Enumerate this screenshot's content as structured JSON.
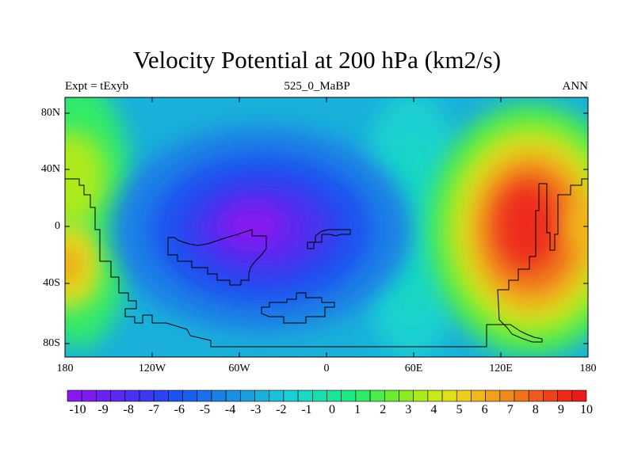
{
  "title": "Velocity Potential at 200 hPa (km2/s)",
  "subtitle_left": "Expt = tExyb",
  "subtitle_center": "525_0_MaBP",
  "subtitle_right": "ANN",
  "lat_labels": [
    "80N",
    "40N",
    "0",
    "40S",
    "80S"
  ],
  "lon_labels": [
    "180",
    "120W",
    "60W",
    "0",
    "60E",
    "120E",
    "180"
  ],
  "colorbar": {
    "labels": [
      "-10",
      "-9",
      "-8",
      "-7",
      "-6",
      "-5",
      "-4",
      "-3",
      "-2",
      "-1",
      "0",
      "1",
      "2",
      "3",
      "4",
      "5",
      "6",
      "7",
      "8",
      "9",
      "10"
    ],
    "colors": [
      "#8a17f0",
      "#7c1cf0",
      "#6a22f0",
      "#5a2af0",
      "#4a30f0",
      "#3b3af0",
      "#2a44f0",
      "#1d52f0",
      "#1a60ee",
      "#1a70ea",
      "#1a80e6",
      "#1a90e2",
      "#1aa0de",
      "#1ab0da",
      "#1ac0d6",
      "#1ad0d2",
      "#19d8c4",
      "#18deb0",
      "#18e49a",
      "#1de884",
      "#30ea6a",
      "#4cec4e",
      "#6cec30",
      "#8cea20",
      "#acea1a",
      "#c8e81a",
      "#e0e01a",
      "#ecce1a",
      "#f0b81a",
      "#f0a01a",
      "#f08a1a",
      "#f0721a",
      "#f05a1a",
      "#f0421a",
      "#ee2a1a",
      "#e81a1a"
    ]
  }
}
